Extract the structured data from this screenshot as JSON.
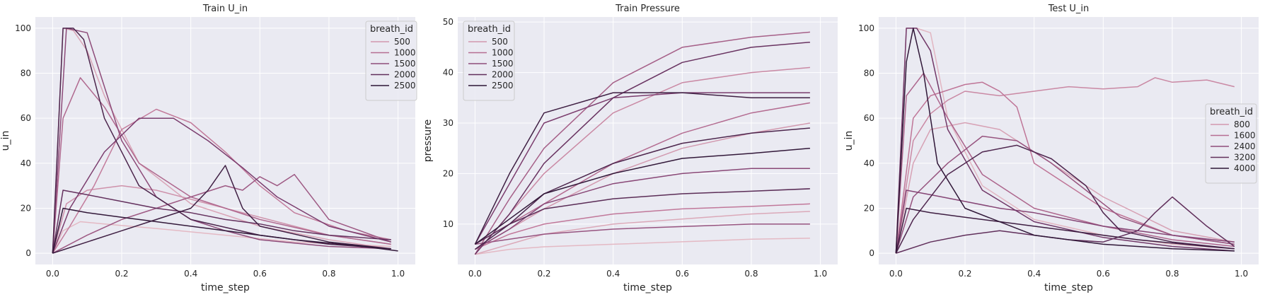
{
  "chart_data": [
    {
      "type": "line",
      "title": "Train U_in",
      "xlabel": "time_step",
      "ylabel": "u_in",
      "xlim": [
        -0.05,
        1.05
      ],
      "ylim": [
        -5,
        105
      ],
      "xticks": [
        0.0,
        0.2,
        0.4,
        0.6,
        0.8,
        1.0
      ],
      "xtick_labels": [
        "0.0",
        "0.2",
        "0.4",
        "0.6",
        "0.8",
        "1.0"
      ],
      "yticks": [
        0,
        20,
        40,
        60,
        80,
        100
      ],
      "ytick_labels": [
        "0",
        "20",
        "40",
        "60",
        "80",
        "100"
      ],
      "grid": true,
      "legend": {
        "title": "breath_id",
        "placement": "top-right",
        "entries": [
          "500",
          "1000",
          "1500",
          "2000",
          "2500"
        ]
      },
      "hue_range": [
        0,
        2800
      ],
      "series": [
        {
          "hue": 150,
          "x": [
            0.0,
            0.03,
            0.08,
            0.15,
            0.3,
            0.5,
            0.7,
            0.98
          ],
          "y": [
            0,
            10,
            14,
            13,
            11,
            8,
            5,
            3
          ]
        },
        {
          "hue": 400,
          "x": [
            0.0,
            0.03,
            0.06,
            0.1,
            0.15,
            0.25,
            0.4,
            0.6,
            0.8,
            0.98
          ],
          "y": [
            0,
            100,
            99,
            90,
            70,
            40,
            22,
            12,
            6,
            2
          ]
        },
        {
          "hue": 650,
          "x": [
            0.0,
            0.04,
            0.1,
            0.2,
            0.3,
            0.45,
            0.6,
            0.8,
            0.98
          ],
          "y": [
            0,
            22,
            28,
            30,
            28,
            22,
            16,
            8,
            4
          ]
        },
        {
          "hue": 900,
          "x": [
            0.0,
            0.05,
            0.12,
            0.2,
            0.3,
            0.4,
            0.5,
            0.6,
            0.7,
            0.85,
            0.98
          ],
          "y": [
            0,
            12,
            30,
            55,
            64,
            58,
            45,
            30,
            18,
            10,
            6
          ]
        },
        {
          "hue": 1200,
          "x": [
            0.0,
            0.03,
            0.08,
            0.15,
            0.25,
            0.4,
            0.6,
            0.8,
            0.98
          ],
          "y": [
            0,
            60,
            78,
            65,
            40,
            25,
            15,
            8,
            4
          ]
        },
        {
          "hue": 1450,
          "x": [
            0.0,
            0.1,
            0.2,
            0.3,
            0.4,
            0.5,
            0.55,
            0.6,
            0.65,
            0.7,
            0.8,
            0.98
          ],
          "y": [
            0,
            8,
            15,
            20,
            25,
            30,
            28,
            34,
            30,
            35,
            15,
            5
          ]
        },
        {
          "hue": 1700,
          "x": [
            0.0,
            0.04,
            0.1,
            0.2,
            0.3,
            0.4,
            0.5,
            0.6,
            0.8,
            0.98
          ],
          "y": [
            0,
            100,
            98,
            50,
            25,
            15,
            10,
            6,
            3,
            2
          ]
        },
        {
          "hue": 1950,
          "x": [
            0.0,
            0.05,
            0.15,
            0.25,
            0.35,
            0.45,
            0.55,
            0.65,
            0.8,
            0.98
          ],
          "y": [
            0,
            20,
            45,
            60,
            60,
            50,
            38,
            25,
            12,
            5
          ]
        },
        {
          "hue": 2200,
          "x": [
            0.0,
            0.03,
            0.1,
            0.2,
            0.3,
            0.4,
            0.5,
            0.6,
            0.7,
            0.8,
            0.98
          ],
          "y": [
            0,
            28,
            26,
            23,
            20,
            18,
            15,
            13,
            10,
            8,
            6
          ]
        },
        {
          "hue": 2450,
          "x": [
            0.0,
            0.03,
            0.06,
            0.09,
            0.15,
            0.25,
            0.4,
            0.6,
            0.8,
            0.98
          ],
          "y": [
            0,
            100,
            100,
            95,
            60,
            30,
            15,
            8,
            4,
            2
          ]
        },
        {
          "hue": 2600,
          "x": [
            0.0,
            0.1,
            0.2,
            0.3,
            0.4,
            0.45,
            0.5,
            0.55,
            0.6,
            0.8,
            0.98
          ],
          "y": [
            0,
            5,
            10,
            15,
            20,
            28,
            39,
            20,
            12,
            5,
            2
          ]
        },
        {
          "hue": 2750,
          "x": [
            0.0,
            0.03,
            0.1,
            0.2,
            0.3,
            0.5,
            0.7,
            0.9,
            1.0
          ],
          "y": [
            0,
            20,
            18,
            16,
            14,
            10,
            6,
            3,
            1
          ]
        }
      ]
    },
    {
      "type": "line",
      "title": "Train Pressure",
      "xlabel": "time_step",
      "ylabel": "pressure",
      "xlim": [
        -0.05,
        1.05
      ],
      "ylim": [
        2,
        51
      ],
      "xticks": [
        0.0,
        0.2,
        0.4,
        0.6,
        0.8,
        1.0
      ],
      "xtick_labels": [
        "0.0",
        "0.2",
        "0.4",
        "0.6",
        "0.8",
        "1.0"
      ],
      "yticks": [
        10,
        20,
        30,
        40,
        50
      ],
      "ytick_labels": [
        "10",
        "20",
        "30",
        "40",
        "50"
      ],
      "grid": true,
      "legend": {
        "title": "breath_id",
        "placement": "top-left",
        "entries": [
          "500",
          "1000",
          "1500",
          "2000",
          "2500"
        ]
      },
      "hue_range": [
        0,
        2800
      ],
      "series": [
        {
          "hue": 150,
          "x": [
            0.0,
            0.1,
            0.2,
            0.4,
            0.6,
            0.8,
            0.97
          ],
          "y": [
            4,
            5,
            5.5,
            6,
            6.5,
            7,
            7.2
          ]
        },
        {
          "hue": 350,
          "x": [
            0.0,
            0.1,
            0.2,
            0.4,
            0.6,
            0.8,
            0.97
          ],
          "y": [
            4,
            6,
            8,
            10,
            11,
            12,
            12.5
          ]
        },
        {
          "hue": 550,
          "x": [
            0.0,
            0.1,
            0.2,
            0.4,
            0.6,
            0.8,
            0.97
          ],
          "y": [
            5,
            9,
            13,
            20,
            25,
            28,
            30
          ]
        },
        {
          "hue": 750,
          "x": [
            0.0,
            0.1,
            0.2,
            0.4,
            0.6,
            0.8,
            0.97
          ],
          "y": [
            4,
            12,
            20,
            32,
            38,
            40,
            41
          ]
        },
        {
          "hue": 950,
          "x": [
            0.0,
            0.1,
            0.2,
            0.4,
            0.6,
            0.8,
            0.97
          ],
          "y": [
            5,
            8,
            10,
            12,
            13,
            13.5,
            14
          ]
        },
        {
          "hue": 1150,
          "x": [
            0.0,
            0.1,
            0.2,
            0.4,
            0.6,
            0.8,
            0.97
          ],
          "y": [
            6,
            10,
            14,
            22,
            28,
            32,
            34
          ]
        },
        {
          "hue": 1350,
          "x": [
            0.0,
            0.1,
            0.2,
            0.4,
            0.6,
            0.8,
            0.97
          ],
          "y": [
            4,
            15,
            25,
            38,
            45,
            47,
            48
          ]
        },
        {
          "hue": 1550,
          "x": [
            0.0,
            0.1,
            0.2,
            0.4,
            0.6,
            0.8,
            0.97
          ],
          "y": [
            6,
            7,
            8,
            9,
            9.5,
            10,
            10
          ]
        },
        {
          "hue": 1750,
          "x": [
            0.0,
            0.1,
            0.2,
            0.4,
            0.6,
            0.8,
            0.97
          ],
          "y": [
            5,
            9,
            14,
            18,
            20,
            21,
            21
          ]
        },
        {
          "hue": 1950,
          "x": [
            0.0,
            0.1,
            0.2,
            0.4,
            0.6,
            0.8,
            0.97
          ],
          "y": [
            6,
            18,
            30,
            35,
            36,
            36,
            36
          ]
        },
        {
          "hue": 2150,
          "x": [
            0.0,
            0.1,
            0.2,
            0.4,
            0.6,
            0.8,
            0.97
          ],
          "y": [
            4,
            12,
            22,
            35,
            42,
            45,
            46
          ]
        },
        {
          "hue": 2300,
          "x": [
            0.0,
            0.1,
            0.2,
            0.4,
            0.6,
            0.8,
            0.97
          ],
          "y": [
            6,
            10,
            13,
            15,
            16,
            16.5,
            17
          ]
        },
        {
          "hue": 2450,
          "x": [
            0.0,
            0.1,
            0.2,
            0.4,
            0.6,
            0.8,
            0.97
          ],
          "y": [
            5,
            10,
            16,
            22,
            26,
            28,
            29
          ]
        },
        {
          "hue": 2600,
          "x": [
            0.0,
            0.1,
            0.2,
            0.4,
            0.6,
            0.8,
            0.97
          ],
          "y": [
            6,
            20,
            32,
            36,
            36,
            35,
            35
          ]
        },
        {
          "hue": 2750,
          "x": [
            0.0,
            0.1,
            0.2,
            0.4,
            0.6,
            0.8,
            0.97
          ],
          "y": [
            6,
            11,
            16,
            20,
            23,
            24,
            25
          ]
        }
      ]
    },
    {
      "type": "line",
      "title": "Test U_in",
      "xlabel": "time_step",
      "ylabel": "u_in",
      "xlim": [
        -0.05,
        1.05
      ],
      "ylim": [
        -5,
        105
      ],
      "xticks": [
        0.0,
        0.2,
        0.4,
        0.6,
        0.8,
        1.0
      ],
      "xtick_labels": [
        "0.0",
        "0.2",
        "0.4",
        "0.6",
        "0.8",
        "1.0"
      ],
      "yticks": [
        0,
        20,
        40,
        60,
        80,
        100
      ],
      "ytick_labels": [
        "0",
        "20",
        "40",
        "60",
        "80",
        "100"
      ],
      "grid": true,
      "legend": {
        "title": "breath_id",
        "placement": "center-right",
        "entries": [
          "800",
          "1600",
          "2400",
          "3200",
          "4000"
        ]
      },
      "hue_range": [
        0,
        4500
      ],
      "series": [
        {
          "hue": 300,
          "x": [
            0.0,
            0.03,
            0.06,
            0.1,
            0.15,
            0.25,
            0.4,
            0.6,
            0.8,
            0.98
          ],
          "y": [
            0,
            100,
            100,
            98,
            60,
            30,
            15,
            8,
            4,
            2
          ]
        },
        {
          "hue": 700,
          "x": [
            0.0,
            0.05,
            0.1,
            0.2,
            0.3,
            0.4,
            0.6,
            0.8,
            0.98
          ],
          "y": [
            0,
            40,
            55,
            58,
            55,
            45,
            25,
            10,
            5
          ]
        },
        {
          "hue": 1200,
          "x": [
            0.0,
            0.05,
            0.1,
            0.15,
            0.2,
            0.3,
            0.4,
            0.5,
            0.6,
            0.7,
            0.75,
            0.8,
            0.9,
            0.98
          ],
          "y": [
            0,
            50,
            62,
            68,
            72,
            70,
            72,
            74,
            73,
            74,
            78,
            76,
            77,
            74
          ]
        },
        {
          "hue": 1600,
          "x": [
            0.0,
            0.05,
            0.1,
            0.2,
            0.25,
            0.3,
            0.35,
            0.4,
            0.6,
            0.8,
            0.98
          ],
          "y": [
            0,
            60,
            70,
            75,
            76,
            72,
            65,
            40,
            20,
            8,
            4
          ]
        },
        {
          "hue": 2000,
          "x": [
            0.0,
            0.03,
            0.08,
            0.15,
            0.25,
            0.4,
            0.6,
            0.8,
            0.98
          ],
          "y": [
            0,
            70,
            80,
            60,
            35,
            20,
            12,
            6,
            3
          ]
        },
        {
          "hue": 2500,
          "x": [
            0.0,
            0.05,
            0.15,
            0.25,
            0.35,
            0.45,
            0.55,
            0.65,
            0.8,
            0.98
          ],
          "y": [
            0,
            25,
            40,
            52,
            50,
            40,
            28,
            16,
            8,
            4
          ]
        },
        {
          "hue": 2900,
          "x": [
            0.0,
            0.03,
            0.1,
            0.2,
            0.3,
            0.4,
            0.5,
            0.6,
            0.7,
            0.8,
            0.98
          ],
          "y": [
            0,
            28,
            26,
            23,
            20,
            18,
            15,
            12,
            10,
            8,
            5
          ]
        },
        {
          "hue": 3300,
          "x": [
            0.0,
            0.03,
            0.06,
            0.1,
            0.15,
            0.25,
            0.4,
            0.6,
            0.8,
            0.98
          ],
          "y": [
            0,
            100,
            100,
            90,
            55,
            28,
            14,
            7,
            3,
            1
          ]
        },
        {
          "hue": 3600,
          "x": [
            0.0,
            0.1,
            0.2,
            0.3,
            0.4,
            0.5,
            0.6,
            0.7,
            0.75,
            0.8,
            0.9,
            0.98
          ],
          "y": [
            0,
            5,
            8,
            10,
            8,
            6,
            5,
            10,
            18,
            25,
            12,
            3
          ]
        },
        {
          "hue": 3900,
          "x": [
            0.0,
            0.05,
            0.15,
            0.25,
            0.35,
            0.45,
            0.55,
            0.6,
            0.65,
            0.8,
            0.98
          ],
          "y": [
            0,
            15,
            35,
            45,
            48,
            42,
            30,
            18,
            10,
            5,
            2
          ]
        },
        {
          "hue": 4200,
          "x": [
            0.0,
            0.03,
            0.1,
            0.2,
            0.3,
            0.5,
            0.7,
            0.9,
            0.98
          ],
          "y": [
            0,
            20,
            18,
            16,
            14,
            10,
            6,
            3,
            2
          ]
        },
        {
          "hue": 4450,
          "x": [
            0.0,
            0.03,
            0.05,
            0.08,
            0.12,
            0.2,
            0.4,
            0.6,
            0.8,
            0.98
          ],
          "y": [
            0,
            85,
            100,
            80,
            40,
            20,
            8,
            4,
            2,
            1
          ]
        }
      ]
    }
  ]
}
